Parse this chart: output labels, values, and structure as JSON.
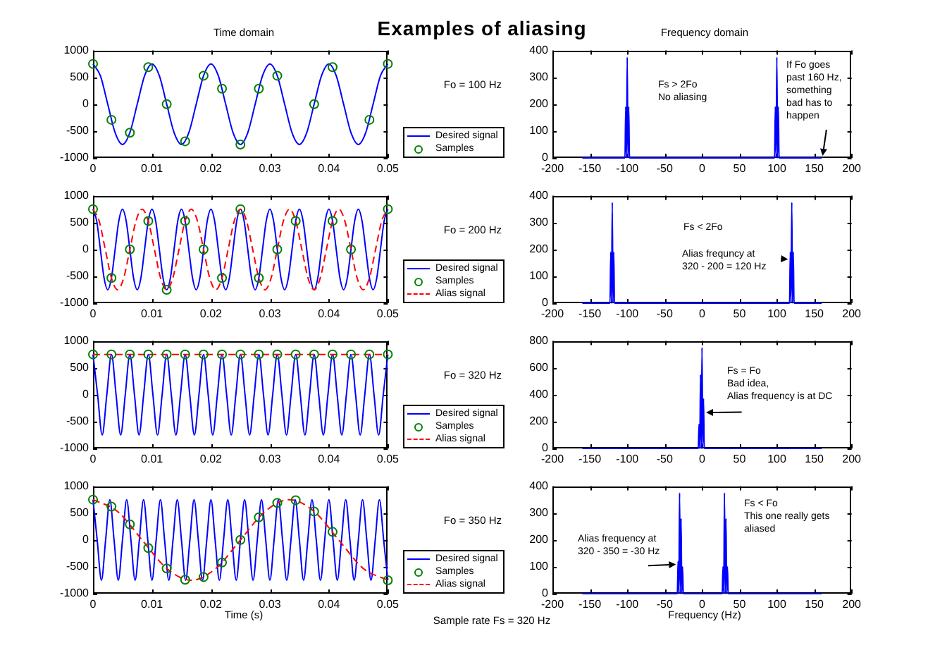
{
  "chart_data": [
    {
      "type": "other",
      "title": "Examples of aliasing",
      "annotations": [
        "Sample rate Fs = 320 Hz"
      ]
    },
    {
      "type": "line",
      "title": "Time domain",
      "xlim": [
        0,
        0.05
      ],
      "xticks": [
        0,
        0.01,
        0.02,
        0.03,
        0.04,
        0.05
      ],
      "ylim": [
        -1000,
        1000
      ],
      "yticks": [
        -1000,
        -500,
        0,
        500,
        1000
      ],
      "legend": "right",
      "series": [
        {
          "name": "Desired signal",
          "color": "#0000ff",
          "x": [
            0,
            0.00125,
            0.0025,
            0.00375,
            0.005,
            0.00625,
            0.0075,
            0.00875,
            0.01,
            0.01125,
            0.0125,
            0.01375,
            0.015,
            0.01625,
            0.0175,
            0.01875,
            0.02,
            0.02125,
            0.0225,
            0.02375,
            0.025,
            0.02625,
            0.0275,
            0.02875,
            0.03,
            0.03125,
            0.0325,
            0.03375,
            0.035,
            0.03625,
            0.0375,
            0.03875,
            0.04,
            0.04125,
            0.0425,
            0.04375,
            0.045,
            0.04625,
            0.0475,
            0.04875,
            0.05
          ],
          "values": [
            750,
            530,
            0,
            -530,
            -750,
            -530,
            0,
            530,
            750,
            530,
            0,
            -530,
            -750,
            -530,
            0,
            530,
            750,
            530,
            0,
            -530,
            -750,
            -530,
            0,
            530,
            750,
            530,
            0,
            -530,
            -750,
            -530,
            0,
            530,
            750,
            530,
            0,
            -530,
            -750,
            -530,
            0,
            530,
            750
          ]
        },
        {
          "name": "Samples",
          "type": "scatter",
          "marker": "circle",
          "color": "#008000",
          "x": [
            0,
            0.003125,
            0.00625,
            0.009375,
            0.0125,
            0.015625,
            0.01875,
            0.021875,
            0.025,
            0.028125,
            0.03125,
            0.034375,
            0.0375,
            0.040625,
            0.04375,
            0.046875,
            0.05
          ],
          "values": [
            750,
            -290,
            -530,
            690,
            0,
            -690,
            530,
            290,
            -750,
            290,
            530,
            null,
            0,
            690,
            null,
            -290,
            750
          ]
        }
      ]
    },
    {
      "type": "line",
      "title": "Frequency domain",
      "ylabel": "Fo = 100 Hz",
      "xlim": [
        -200,
        200
      ],
      "xticks": [
        -200,
        -150,
        -100,
        -50,
        0,
        50,
        100,
        150,
        200
      ],
      "ylim": [
        0,
        400
      ],
      "yticks": [
        0,
        100,
        200,
        300,
        400
      ],
      "annotations": [
        "Fs > 2Fo\nNo aliasing",
        {
          "text": "If Fo goes\npast 160 Hz,\nsomething\nbad has to\nhappen",
          "x": 160,
          "y": 0
        }
      ],
      "series": [
        {
          "color": "#0000ff",
          "x": [
            -160,
            -103,
            -102,
            -101,
            -100,
            -99,
            -98,
            -97,
            97,
            98,
            99,
            100,
            101,
            102,
            103,
            160
          ],
          "values": [
            0,
            0,
            190,
            0,
            375,
            0,
            190,
            0,
            0,
            190,
            0,
            375,
            0,
            190,
            0,
            0
          ]
        }
      ]
    },
    {
      "type": "line",
      "xlim": [
        0,
        0.05
      ],
      "xticks": [
        0,
        0.01,
        0.02,
        0.03,
        0.04,
        0.05
      ],
      "ylim": [
        -1000,
        1000
      ],
      "yticks": [
        -1000,
        -500,
        0,
        500,
        1000
      ],
      "legend": "right",
      "series": [
        {
          "name": "Desired signal",
          "color": "#0000ff",
          "x": [
            0,
            0.000625,
            0.00125,
            0.001875,
            0.0025,
            0.003125,
            0.00375,
            0.004375,
            0.005,
            0.005625,
            0.00625,
            0.006875,
            0.0075,
            0.008125,
            0.00875,
            0.009375,
            0.01,
            0.010625,
            0.01125,
            0.011875,
            0.0125,
            0.013125,
            0.01375,
            0.014375,
            0.015,
            0.015625,
            0.01625,
            0.016875,
            0.0175,
            0.018125,
            0.01875,
            0.019375,
            0.02,
            0.020625,
            0.02125,
            0.021875,
            0.0225,
            0.023125,
            0.02375,
            0.024375,
            0.025,
            0.025625,
            0.02625,
            0.026875,
            0.0275,
            0.028125,
            0.02875,
            0.029375,
            0.03,
            0.030625,
            0.03125,
            0.031875,
            0.0325,
            0.033125,
            0.03375,
            0.034375,
            0.035,
            0.035625,
            0.03625,
            0.036875,
            0.0375,
            0.038125,
            0.03875,
            0.039375,
            0.04,
            0.040625,
            0.04125,
            0.041875,
            0.0425,
            0.043125,
            0.04375,
            0.044375,
            0.045,
            0.045625,
            0.04625,
            0.046875,
            0.0475,
            0.048125,
            0.04875,
            0.049375,
            0.05
          ],
          "values": [
            750,
            530,
            0,
            -530,
            -750,
            -530,
            0,
            530,
            750,
            530,
            0,
            -530,
            -750,
            -530,
            0,
            530,
            750,
            530,
            0,
            -530,
            -750,
            -530,
            0,
            530,
            750,
            530,
            0,
            -530,
            -750,
            -530,
            0,
            530,
            750,
            530,
            0,
            -530,
            -750,
            -530,
            0,
            530,
            750,
            530,
            0,
            -530,
            -750,
            -530,
            0,
            530,
            750,
            530,
            0,
            -530,
            -750,
            -530,
            0,
            530,
            750,
            530,
            0,
            -530,
            -750,
            -530,
            0,
            530,
            750,
            530,
            0,
            -530,
            -750,
            -530,
            0,
            530,
            750,
            530,
            0,
            -530,
            -750,
            -530,
            0,
            530,
            750
          ]
        },
        {
          "name": "Samples",
          "type": "scatter",
          "marker": "circle",
          "color": "#008000",
          "x": [
            0,
            0.003125,
            0.00625,
            0.009375,
            0.0125,
            0.015625,
            0.01875,
            0.021875,
            0.025,
            0.028125,
            0.03125,
            0.034375,
            0.0375,
            0.040625,
            0.04375,
            0.046875,
            0.05
          ],
          "values": [
            750,
            -530,
            0,
            530,
            -750,
            530,
            0,
            -530,
            750,
            -530,
            0,
            530,
            null,
            530,
            0,
            null,
            750
          ]
        },
        {
          "name": "Alias signal",
          "color": "#ff0000",
          "line_style": "dashed",
          "x": [
            0,
            0.00104,
            0.00208,
            0.003125,
            0.00417,
            0.00521,
            0.00625,
            0.00729,
            0.00833,
            0.009375,
            0.01042,
            0.01146,
            0.0125,
            0.01354,
            0.01458,
            0.015625,
            0.01667,
            0.01771,
            0.01875,
            0.01979,
            0.02083,
            0.021875,
            0.02292,
            0.02396,
            0.025,
            0.02604,
            0.02708,
            0.028125,
            0.02917,
            0.03021,
            0.03125,
            0.03229,
            0.03333,
            0.034375,
            0.03542,
            0.03646,
            0.0375,
            0.03854,
            0.03958,
            0.040625,
            0.04167,
            0.04271,
            0.04375,
            0.04479,
            0.04583,
            0.046875,
            0.04792,
            0.04896,
            0.05
          ],
          "values": [
            750,
            530,
            0,
            -530,
            -750,
            -530,
            0,
            530,
            750,
            530,
            0,
            -530,
            -750,
            -530,
            0,
            530,
            750,
            530,
            0,
            -530,
            -750,
            -530,
            0,
            530,
            750,
            530,
            0,
            -530,
            -750,
            -530,
            0,
            530,
            750,
            530,
            0,
            -530,
            -750,
            -530,
            0,
            530,
            750,
            530,
            0,
            -530,
            -750,
            -530,
            0,
            530,
            750
          ]
        }
      ]
    },
    {
      "type": "line",
      "ylabel": "Fo = 200 Hz",
      "xlim": [
        -200,
        200
      ],
      "xticks": [
        -200,
        -150,
        -100,
        -50,
        0,
        50,
        100,
        150,
        200
      ],
      "ylim": [
        0,
        400
      ],
      "yticks": [
        0,
        100,
        200,
        300,
        400
      ],
      "annotations": [
        "Fs < 2Fo",
        {
          "text": "Alias frequncy at\n320 - 200 = 120 Hz",
          "x": 118,
          "y": 160
        }
      ],
      "series": [
        {
          "color": "#0000ff",
          "x": [
            -160,
            -123,
            -122,
            -121,
            -120,
            -119,
            -118,
            -117,
            117,
            118,
            119,
            120,
            121,
            122,
            123,
            160
          ],
          "values": [
            0,
            0,
            190,
            0,
            375,
            0,
            190,
            0,
            0,
            190,
            0,
            375,
            0,
            190,
            0,
            0
          ]
        }
      ]
    },
    {
      "type": "line",
      "xlim": [
        0,
        0.05
      ],
      "xticks": [
        0,
        0.01,
        0.02,
        0.03,
        0.04,
        0.05
      ],
      "ylim": [
        -1000,
        1000
      ],
      "yticks": [
        -1000,
        -500,
        0,
        500,
        1000
      ],
      "legend": "right",
      "series": [
        {
          "name": "Desired signal",
          "color": "#0000ff",
          "x": [
            0,
            0.00078,
            0.00156,
            0.00234,
            0.00313,
            0.00391,
            0.00469,
            0.00547,
            0.00625,
            0.00703,
            0.00781,
            0.00859,
            0.00938,
            0.01016,
            0.01094,
            0.01172,
            0.0125,
            0.01328,
            0.01406,
            0.01484,
            0.01563,
            0.01641,
            0.01719,
            0.01797,
            0.01875,
            0.01953,
            0.02031,
            0.02109,
            0.02188,
            0.02266,
            0.02344,
            0.02422,
            0.025,
            0.02578,
            0.02656,
            0.02734,
            0.02813,
            0.02891,
            0.02969,
            0.03047,
            0.03125,
            0.03203,
            0.03281,
            0.03359,
            0.03438,
            0.03516,
            0.03594,
            0.03672,
            0.0375,
            0.03828,
            0.03906,
            0.03984,
            0.04063,
            0.04141,
            0.04219,
            0.04297,
            0.04375,
            0.04453,
            0.04531,
            0.04609,
            0.04688,
            0.04766,
            0.04844,
            0.04922,
            0.05
          ],
          "values": [
            750,
            0,
            -750,
            0,
            750,
            0,
            -750,
            0,
            750,
            0,
            -750,
            0,
            750,
            0,
            -750,
            0,
            750,
            0,
            -750,
            0,
            750,
            0,
            -750,
            0,
            750,
            0,
            -750,
            0,
            750,
            0,
            -750,
            0,
            750,
            0,
            -750,
            0,
            750,
            0,
            -750,
            0,
            750,
            0,
            -750,
            0,
            750,
            0,
            -750,
            0,
            750,
            0,
            -750,
            0,
            750,
            0,
            -750,
            0,
            750,
            0,
            -750,
            0,
            750,
            0,
            -750,
            0,
            750
          ]
        },
        {
          "name": "Samples",
          "type": "scatter",
          "marker": "circle",
          "color": "#008000",
          "x": [
            0,
            0.003125,
            0.00625,
            0.009375,
            0.0125,
            0.015625,
            0.01875,
            0.021875,
            0.025,
            0.028125,
            0.03125,
            0.034375,
            0.0375,
            0.040625,
            0.04375,
            0.046875,
            0.05
          ],
          "values": [
            750,
            750,
            750,
            750,
            750,
            750,
            750,
            750,
            750,
            750,
            750,
            750,
            750,
            750,
            750,
            750,
            750
          ]
        },
        {
          "name": "Alias signal",
          "color": "#ff0000",
          "line_style": "dashed",
          "x": [
            0,
            0.05
          ],
          "values": [
            750,
            750
          ]
        }
      ]
    },
    {
      "type": "line",
      "ylabel": "Fo = 320 Hz",
      "xlim": [
        -200,
        200
      ],
      "xticks": [
        -200,
        -150,
        -100,
        -50,
        0,
        50,
        100,
        150,
        200
      ],
      "ylim": [
        0,
        800
      ],
      "yticks": [
        0,
        200,
        400,
        600,
        800
      ],
      "annotations": [
        {
          "text": "Fs = Fo\nBad idea,\nAlias frequency is at DC",
          "x": 2,
          "y": 270
        }
      ],
      "series": [
        {
          "color": "#0000ff",
          "x": [
            -160,
            -5,
            -4,
            -3,
            -2,
            -1,
            0,
            1,
            2,
            3,
            160
          ],
          "values": [
            0,
            0,
            180,
            0,
            550,
            0,
            750,
            0,
            370,
            0,
            0
          ]
        }
      ]
    },
    {
      "type": "line",
      "xlabel": "Time (s)",
      "xlim": [
        0,
        0.05
      ],
      "xticks": [
        0,
        0.01,
        0.02,
        0.03,
        0.04,
        0.05
      ],
      "ylim": [
        -1000,
        1000
      ],
      "yticks": [
        -1000,
        -500,
        0,
        500,
        1000
      ],
      "legend": "right",
      "series": [
        {
          "name": "Desired signal",
          "color": "#0000ff",
          "x": [
            0,
            0.00071,
            0.00143,
            0.00214,
            0.00286,
            0.00357,
            0.00429,
            0.005,
            0.00571,
            0.00643,
            0.00714,
            0.00786,
            0.00857,
            0.00929,
            0.01,
            0.01071,
            0.01143,
            0.01214,
            0.01286,
            0.01357,
            0.01429,
            0.015,
            0.01571,
            0.01643,
            0.01714,
            0.01786,
            0.01857,
            0.01929,
            0.02,
            0.02071,
            0.02143,
            0.02214,
            0.02286,
            0.02357,
            0.02429,
            0.025,
            0.02571,
            0.02643,
            0.02714,
            0.02786,
            0.02857,
            0.02929,
            0.03,
            0.03071,
            0.03143,
            0.03214,
            0.03286,
            0.03357,
            0.03429,
            0.035,
            0.03571,
            0.03643,
            0.03714,
            0.03786,
            0.03857,
            0.03929,
            0.04,
            0.04071,
            0.04143,
            0.04214,
            0.04286,
            0.04357,
            0.04429,
            0.045,
            0.04571,
            0.04643,
            0.04714,
            0.04786,
            0.04857,
            0.04929,
            0.05
          ],
          "values": [
            750,
            0,
            -750,
            0,
            750,
            0,
            -750,
            0,
            750,
            0,
            -750,
            0,
            750,
            0,
            -750,
            0,
            750,
            0,
            -750,
            0,
            750,
            0,
            -750,
            0,
            750,
            0,
            -750,
            0,
            750,
            0,
            -750,
            0,
            750,
            0,
            -750,
            0,
            750,
            0,
            -750,
            0,
            750,
            0,
            -750,
            0,
            750,
            0,
            -750,
            0,
            750,
            0,
            -750,
            0,
            750,
            0,
            -750,
            0,
            750,
            0,
            -750,
            0,
            750,
            0,
            -750,
            0,
            750,
            0,
            -750,
            0,
            750,
            0,
            -750
          ]
        },
        {
          "name": "Samples",
          "type": "scatter",
          "marker": "circle",
          "color": "#008000",
          "x": [
            0,
            0.003125,
            0.00625,
            0.009375,
            0.0125,
            0.015625,
            0.01875,
            0.021875,
            0.025,
            0.028125,
            0.03125,
            0.034375,
            0.0375,
            0.040625,
            0.04375,
            0.046875,
            0.05
          ],
          "values": [
            750,
            620,
            290,
            -150,
            -530,
            -740,
            -690,
            -420,
            0,
            420,
            690,
            740,
            530,
            150,
            null,
            null,
            -750
          ]
        },
        {
          "name": "Alias signal",
          "color": "#ff0000",
          "line_style": "dashed",
          "x": [
            0,
            0.00417,
            0.00833,
            0.0125,
            0.01667,
            0.02083,
            0.025,
            0.02917,
            0.03333,
            0.0375,
            0.04167,
            0.04583,
            0.05
          ],
          "values": [
            750,
            530,
            0,
            -530,
            -750,
            -530,
            0,
            530,
            750,
            530,
            0,
            -530,
            -750
          ]
        }
      ]
    },
    {
      "type": "line",
      "xlabel": "Frequency (Hz)",
      "ylabel": "Fo = 350 Hz",
      "xlim": [
        -200,
        200
      ],
      "xticks": [
        -200,
        -150,
        -100,
        -50,
        0,
        50,
        100,
        150,
        200
      ],
      "ylim": [
        0,
        400
      ],
      "yticks": [
        0,
        100,
        200,
        300,
        400
      ],
      "annotations": [
        "Fs < Fo\nThis one really gets\naliased",
        {
          "text": "Alias frequency at\n320 - 350 = -30 Hz",
          "x": -32,
          "y": 110
        }
      ],
      "series": [
        {
          "color": "#0000ff",
          "x": [
            -160,
            -33,
            -32,
            -31,
            -30,
            -29,
            -28,
            -27,
            -26,
            -25,
            27,
            28,
            29,
            30,
            31,
            32,
            33,
            34,
            35,
            160
          ],
          "values": [
            0,
            0,
            120,
            0,
            375,
            0,
            280,
            0,
            100,
            0,
            0,
            100,
            0,
            375,
            0,
            280,
            0,
            100,
            0,
            0
          ]
        }
      ]
    }
  ]
}
